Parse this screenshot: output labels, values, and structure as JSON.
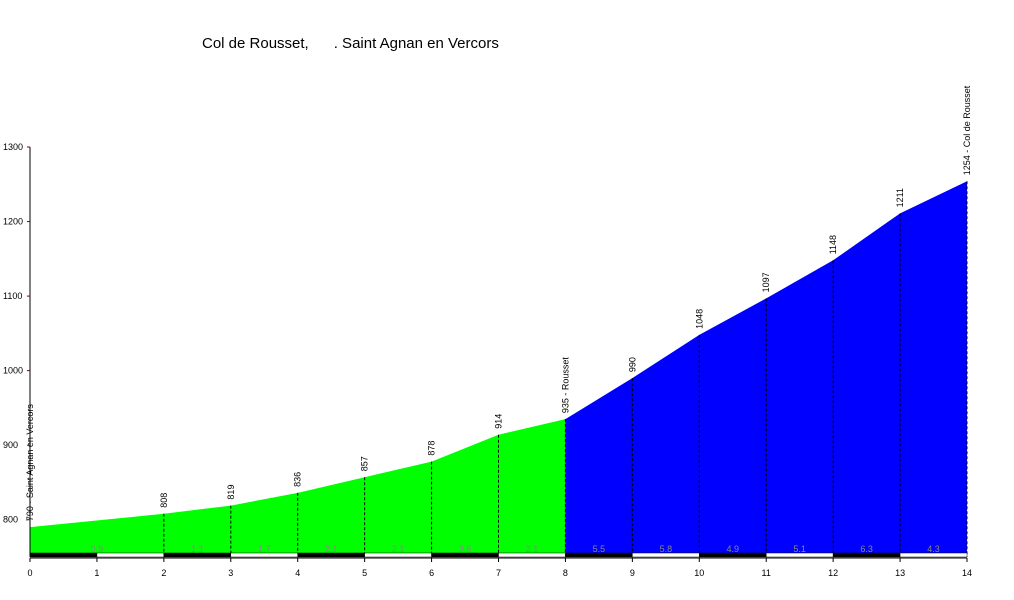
{
  "chart_data": {
    "type": "area",
    "title": "Col de Rousset,      . Saint Agnan en Vercors",
    "series": [
      {
        "color": "#00ff00",
        "x": [
          0,
          2,
          3,
          4,
          5,
          6,
          7,
          8
        ],
        "values": [
          790,
          808,
          819,
          836,
          857,
          878,
          914,
          935
        ],
        "value_labels": [
          "790 - Saint Agnan en Vercors",
          "808",
          "819",
          "836",
          "857",
          "878",
          "914",
          "935 - Rousset"
        ]
      },
      {
        "color": "#0000ff",
        "x": [
          8,
          9,
          10,
          11,
          12,
          13,
          14
        ],
        "values": [
          935,
          990,
          1048,
          1097,
          1148,
          1211,
          1254
        ],
        "value_labels": [
          null,
          "990",
          "1048",
          "1097",
          "1148",
          "1211",
          "1254 - Col de Rousset"
        ]
      }
    ],
    "gradients": {
      "bins": [
        0,
        2,
        3,
        4,
        5,
        6,
        7,
        8,
        9,
        10,
        11,
        12,
        13,
        14
      ],
      "values": [
        0.9,
        1.1,
        1.7,
        2.1,
        2.1,
        3.6,
        2.1,
        5.5,
        5.8,
        4.9,
        5.1,
        6.3,
        4.3
      ]
    },
    "xlim": [
      0,
      14
    ],
    "xticks": [
      0,
      1,
      2,
      3,
      4,
      5,
      6,
      7,
      8,
      9,
      10,
      11,
      12,
      13,
      14
    ],
    "ylim": [
      750,
      1300
    ],
    "yticks": [
      800,
      900,
      1000,
      1100,
      1200,
      1300
    ]
  }
}
